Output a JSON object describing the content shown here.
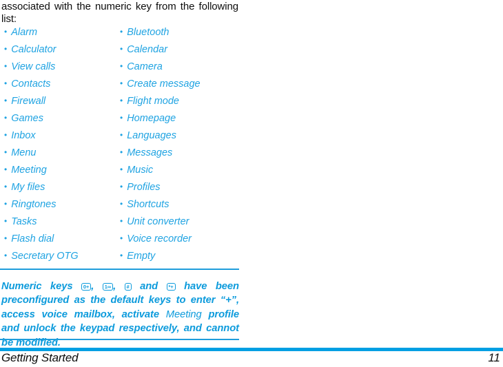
{
  "intro": {
    "line1": "associated with the numeric key from the following",
    "line2": "list:"
  },
  "shortcut_list": {
    "bullet": "•",
    "left": [
      "Alarm",
      "Calculator",
      "View calls",
      "Contacts",
      "Firewall",
      "Games",
      "Inbox",
      "Menu",
      "Meeting",
      "My files",
      "Ringtones",
      "Tasks",
      "Flash dial",
      "Secretary OTG"
    ],
    "right": [
      "Bluetooth",
      "Calendar",
      "Camera",
      "Create message",
      "Flight mode",
      "Homepage",
      "Languages",
      "Messages",
      "Music",
      "Profiles",
      "Shortcuts",
      "Unit converter",
      "Voice recorder",
      "Empty"
    ]
  },
  "note": {
    "intro": "Numeric keys ",
    "keys": [
      "0+",
      "1∞",
      "#",
      "*+"
    ],
    "sep_comma": ", ",
    "sep_and": " and ",
    "body1": " have been preconfigured as the default keys to enter “+”, access voice mailbox, activate ",
    "profile_name": "Meeting",
    "body2": " profile and unlock the keypad respectively, and cannot be modified."
  },
  "footer": {
    "section": "Getting Started",
    "page_number": "11"
  },
  "colors": {
    "list_blue": "#1FA3E2",
    "note_blue": "#0D9BDC",
    "divider_blue": "#1E9DDB",
    "bar_blue": "#009FE3",
    "ink": "#0d0d0d"
  }
}
